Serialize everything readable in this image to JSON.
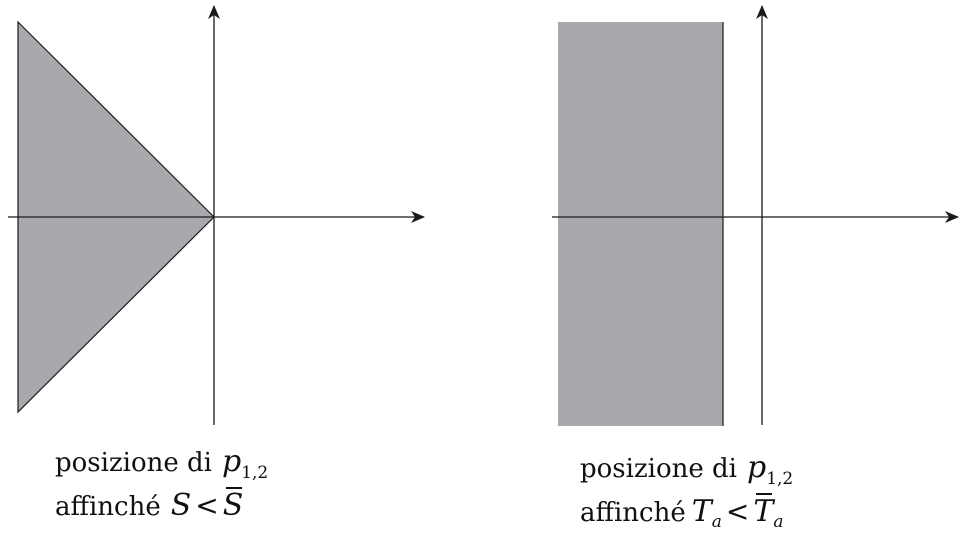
{
  "colors": {
    "region_fill": "#a7a9ac",
    "stroke": "#1a1a1a",
    "background": "#ffffff"
  },
  "left_panel": {
    "region_shape": "triangle-left-half-plane-wedge",
    "caption": {
      "line1_text": "posizione di",
      "line1_symbol": "p",
      "line1_subscript": "1,2",
      "line2_text": "affinché",
      "line2_lhs": "S",
      "line2_rel": "<",
      "line2_rhs": "S"
    }
  },
  "right_panel": {
    "region_shape": "vertical-strip-left-of-axis",
    "caption": {
      "line1_text": "posizione di",
      "line1_symbol": "p",
      "line1_subscript": "1,2",
      "line2_text": "affinché",
      "line2_lhs": "T",
      "line2_lhs_sub": "a",
      "line2_rel": "<",
      "line2_rhs": "T",
      "line2_rhs_sub": "a"
    }
  }
}
